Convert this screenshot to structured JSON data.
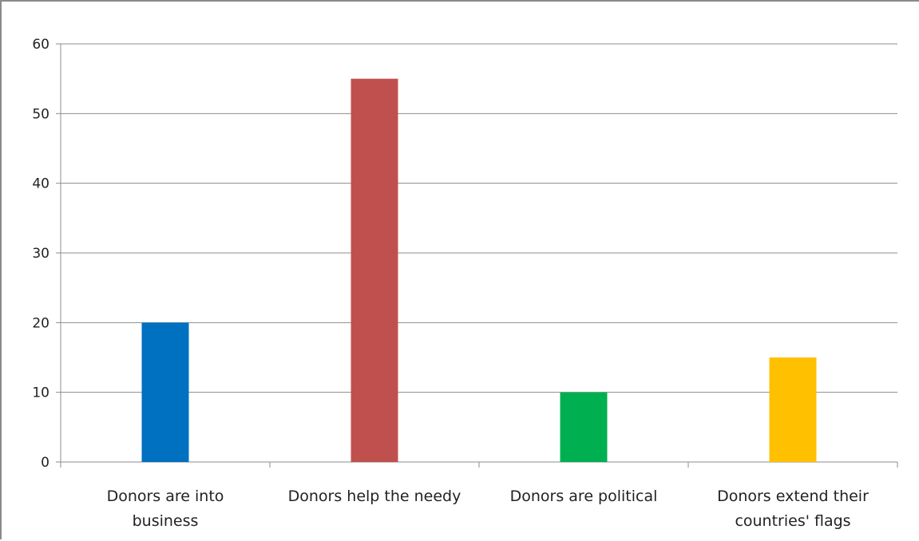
{
  "chart_data": {
    "type": "bar",
    "title": "",
    "xlabel": "",
    "ylabel": "",
    "ylim": [
      0,
      60
    ],
    "ytick_step": 10,
    "ytick_labels": [
      "0",
      "10",
      "20",
      "30",
      "40",
      "50",
      "60"
    ],
    "grid": true,
    "legend": "none",
    "categories": [
      [
        "Donors are into",
        "business"
      ],
      [
        "Donors help the needy"
      ],
      [
        "Donors are political"
      ],
      [
        "Donors extend their",
        "countries' flags"
      ]
    ],
    "values": [
      20,
      55,
      10,
      15
    ],
    "colors": [
      "#0070C0",
      "#C0504D",
      "#00B050",
      "#FFC000"
    ]
  }
}
